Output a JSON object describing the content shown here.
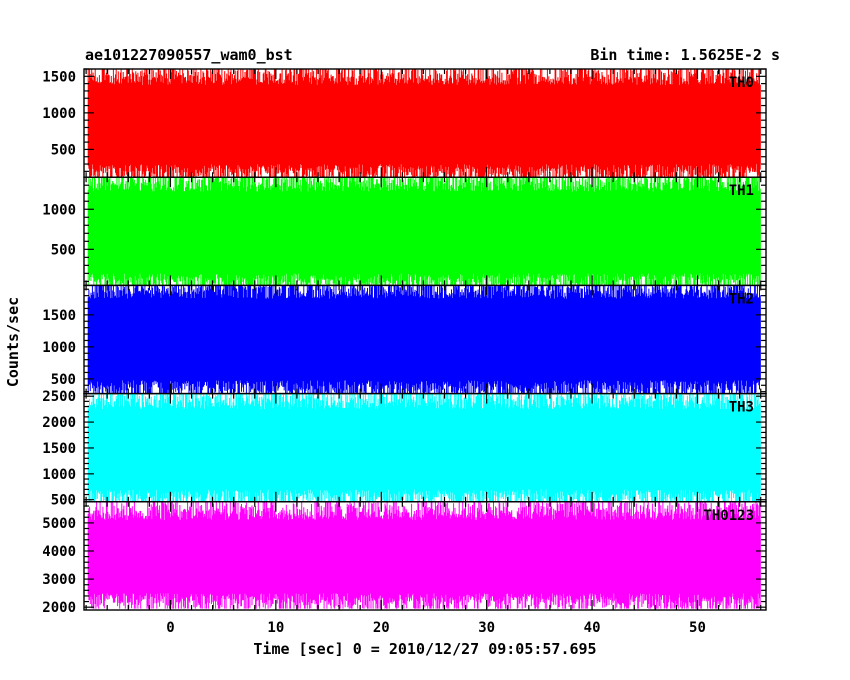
{
  "chart_data": {
    "type": "line",
    "title": "ae101227090557_wam0_bst",
    "subtitle": "Bin time: 1.5625E-2 s",
    "xlabel": "Time [sec] 0 = 2010/12/27 09:05:57.695",
    "ylabel": "Counts/sec",
    "xlim": [
      -8.2,
      56.5
    ],
    "data_x_range": [
      -7.8,
      56.0
    ],
    "x_ticks": [
      0,
      10,
      20,
      30,
      40,
      50
    ],
    "x_minor_step": 2,
    "grid": false,
    "panels": [
      {
        "name": "TH0",
        "color": "#ff0000",
        "ylim": [
          120,
          1600
        ],
        "y_ticks": [
          500,
          1000,
          1500
        ],
        "y_minor_step": 100,
        "mean": 820,
        "typical_low": 300,
        "typical_high": 1380,
        "min": 130,
        "max": 1600
      },
      {
        "name": "TH1",
        "color": "#00ff00",
        "ylim": [
          50,
          1400
        ],
        "y_ticks": [
          500,
          1000
        ],
        "y_minor_step": 100,
        "mean": 720,
        "typical_low": 200,
        "typical_high": 1220,
        "min": 60,
        "max": 1400
      },
      {
        "name": "TH2",
        "color": "#0000ff",
        "ylim": [
          270,
          1960
        ],
        "y_ticks": [
          500,
          1000,
          1500
        ],
        "y_minor_step": 100,
        "mean": 1100,
        "typical_low": 480,
        "typical_high": 1750,
        "min": 280,
        "max": 1960
      },
      {
        "name": "TH3",
        "color": "#00ffff",
        "ylim": [
          460,
          2550
        ],
        "y_ticks": [
          500,
          1000,
          1500,
          2000,
          2500
        ],
        "y_minor_step": 100,
        "mean": 1480,
        "typical_low": 700,
        "typical_high": 2250,
        "min": 470,
        "max": 2550
      },
      {
        "name": "TH0123",
        "color": "#ff00ff",
        "ylim": [
          1900,
          5750
        ],
        "y_ticks": [
          2000,
          3000,
          4000,
          5000
        ],
        "y_minor_step": 200,
        "mean": 3700,
        "typical_low": 2500,
        "typical_high": 5100,
        "min": 1950,
        "max": 5750
      }
    ]
  }
}
